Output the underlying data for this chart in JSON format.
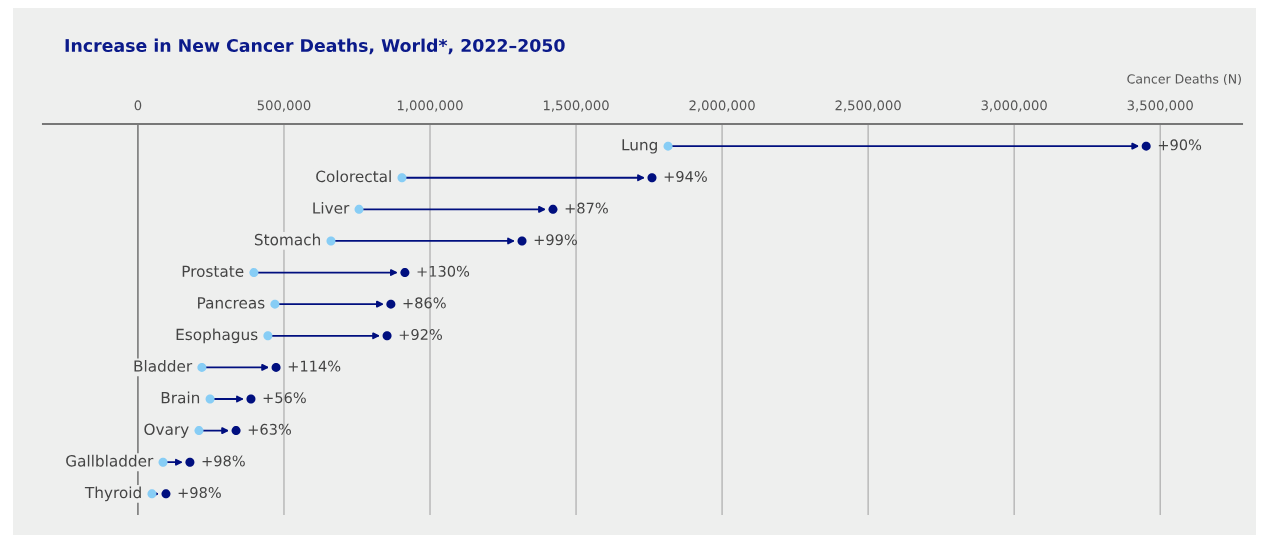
{
  "chart_data": {
    "type": "scatter",
    "orientation": "horizontal",
    "title": "Increase in New Cancer Deaths, World*, 2022–2050",
    "xlabel": "Cancer Deaths (N)",
    "categories": [
      "Lung",
      "Colorectal",
      "Liver",
      "Stomach",
      "Prostate",
      "Pancreas",
      "Esophagus",
      "Bladder",
      "Brain",
      "Ovary",
      "Gallbladder",
      "Thyroid"
    ],
    "series": [
      {
        "color": "#87cdf5",
        "values": [
          1815000,
          904000,
          757000,
          661000,
          397000,
          469000,
          445000,
          219000,
          247000,
          209000,
          86000,
          48000
        ]
      },
      {
        "color": "#000f7f",
        "values": [
          3452000,
          1760000,
          1421000,
          1315000,
          914000,
          866000,
          853000,
          473000,
          387000,
          336000,
          178000,
          96000
        ]
      }
    ],
    "annotations": [
      {
        "text": "+90%",
        "x": 3452000,
        "y": "Lung"
      },
      {
        "text": "+94%",
        "x": 1760000,
        "y": "Colorectal"
      },
      {
        "text": "+87%",
        "x": 1421000,
        "y": "Liver"
      },
      {
        "text": "+99%",
        "x": 1315000,
        "y": "Stomach"
      },
      {
        "text": "+130%",
        "x": 914000,
        "y": "Prostate"
      },
      {
        "text": "+86%",
        "x": 866000,
        "y": "Pancreas"
      },
      {
        "text": "+92%",
        "x": 853000,
        "y": "Esophagus"
      },
      {
        "text": "+114%",
        "x": 473000,
        "y": "Bladder"
      },
      {
        "text": "+56%",
        "x": 387000,
        "y": "Brain"
      },
      {
        "text": "+63%",
        "x": 336000,
        "y": "Ovary"
      },
      {
        "text": "+98%",
        "x": 178000,
        "y": "Gallbladder"
      },
      {
        "text": "+98%",
        "x": 96000,
        "y": "Thyroid"
      }
    ],
    "xlim": [
      -325000,
      3780000
    ],
    "xticks": [
      {
        "value": 0,
        "label": "0"
      },
      {
        "value": 500000,
        "label": "500,000"
      },
      {
        "value": 1000000,
        "label": "1,000,000"
      },
      {
        "value": 1500000,
        "label": "1,500,000"
      },
      {
        "value": 2000000,
        "label": "2,000,000"
      },
      {
        "value": 2500000,
        "label": "2,500,000"
      },
      {
        "value": 3000000,
        "label": "3,000,000"
      },
      {
        "value": 3500000,
        "label": "3,500,000"
      }
    ],
    "grid": "x",
    "marker": "circle",
    "tick_labels": "x",
    "legend": false
  }
}
